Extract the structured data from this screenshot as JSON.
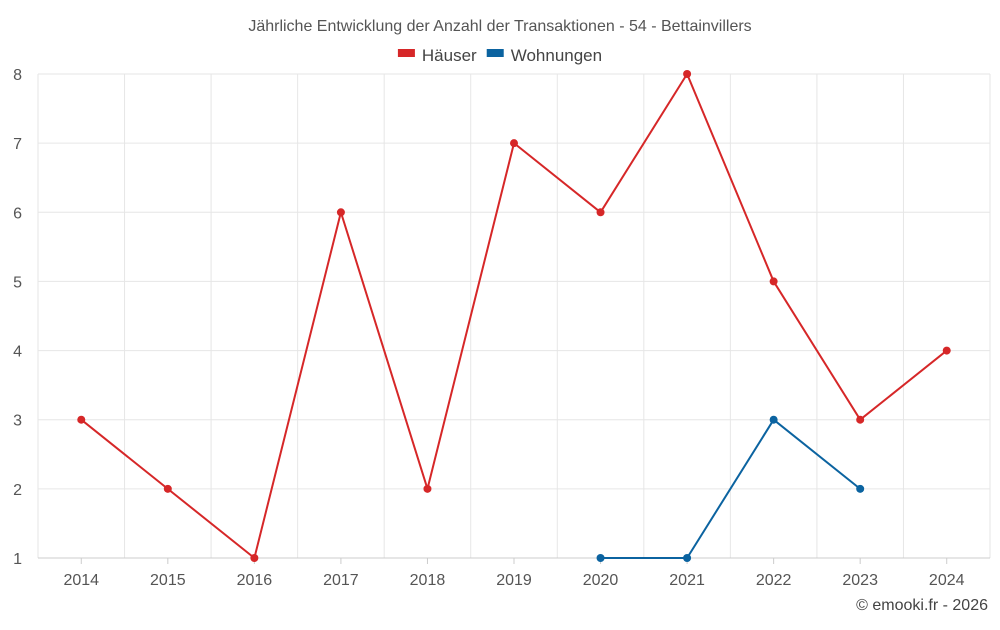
{
  "chart_data": {
    "type": "line",
    "title": "Jährliche Entwicklung der Anzahl der Transaktionen - 54 - Bettainvillers",
    "categories": [
      "2014",
      "2015",
      "2016",
      "2017",
      "2018",
      "2019",
      "2020",
      "2021",
      "2022",
      "2023",
      "2024"
    ],
    "ylim": [
      1,
      8
    ],
    "yticks": [
      "1",
      "2",
      "3",
      "4",
      "5",
      "6",
      "7",
      "8"
    ],
    "grid": true,
    "legend_position": "top-center",
    "series": [
      {
        "name": "Häuser",
        "color": "#d62728",
        "values": [
          3,
          2,
          1,
          6,
          2,
          7,
          6,
          8,
          5,
          3,
          4
        ]
      },
      {
        "name": "Wohnungen",
        "color": "#0b63a0",
        "values": [
          null,
          null,
          null,
          null,
          null,
          null,
          1,
          1,
          3,
          2,
          null
        ]
      }
    ]
  },
  "footer": {
    "credit": "© emooki.fr - 2026"
  }
}
